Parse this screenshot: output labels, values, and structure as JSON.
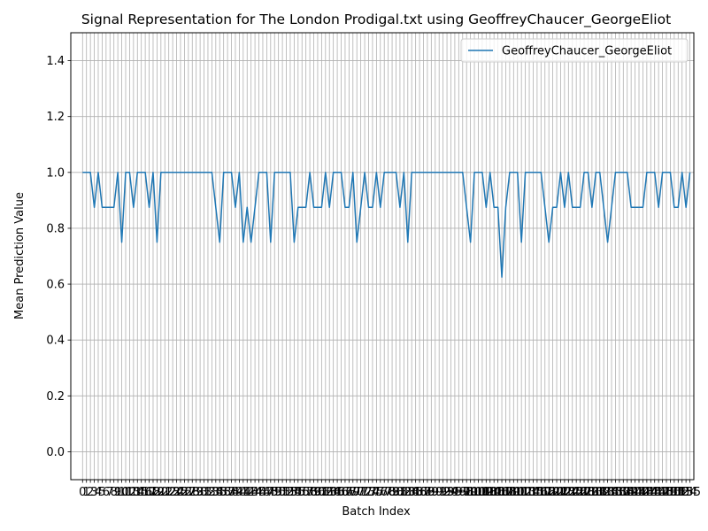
{
  "chart_data": {
    "type": "line",
    "title": "Signal Representation for The London Prodigal.txt using GeoffreyChaucer_GeorgeEliot",
    "xlabel": "Batch Index",
    "ylabel": "Mean Prediction Value",
    "ylim": [
      -0.1,
      1.5
    ],
    "yticks": [
      "0.0",
      "0.2",
      "0.4",
      "0.6",
      "0.8",
      "1.0",
      "1.2",
      "1.4"
    ],
    "xlim": [
      -3,
      156
    ],
    "grid": true,
    "legend_position": "top-right",
    "series": [
      {
        "name": "GeoffreyChaucer_GeorgeEliot",
        "color": "#1f77b4",
        "values": [
          1,
          1,
          1,
          0.875,
          1,
          0.875,
          0.875,
          0.875,
          0.875,
          1,
          0.75,
          1,
          1,
          0.875,
          1,
          1,
          1,
          0.875,
          1,
          0.75,
          1,
          1,
          1,
          1,
          1,
          1,
          1,
          1,
          1,
          1,
          1,
          1,
          1,
          1,
          0.875,
          0.75,
          1,
          1,
          1,
          0.875,
          1,
          0.75,
          0.875,
          0.75,
          0.875,
          1,
          1,
          1,
          0.75,
          1,
          1,
          1,
          1,
          1,
          0.75,
          0.875,
          0.875,
          0.875,
          1,
          0.875,
          0.875,
          0.875,
          1,
          0.875,
          1,
          1,
          1,
          0.875,
          0.875,
          1,
          0.75,
          0.875,
          1,
          0.875,
          0.875,
          1,
          0.875,
          1,
          1,
          1,
          1,
          0.875,
          1,
          0.75,
          1,
          1,
          1,
          1,
          1,
          1,
          1,
          1,
          1,
          1,
          1,
          1,
          1,
          1,
          0.875,
          0.75,
          1,
          1,
          1,
          0.875,
          1,
          0.875,
          0.875,
          0.625,
          0.875,
          1,
          1,
          1,
          0.75,
          1,
          1,
          1,
          1,
          1,
          0.875,
          0.75,
          0.875,
          0.875,
          1,
          0.875,
          1,
          0.875,
          0.875,
          0.875,
          1,
          1,
          0.875,
          1,
          1,
          0.875,
          0.75,
          0.875,
          1,
          1,
          1,
          1,
          0.875,
          0.875,
          0.875,
          0.875,
          1,
          1,
          1,
          0.875,
          1,
          1,
          1,
          0.875,
          0.875,
          1,
          0.875,
          1
        ]
      }
    ]
  }
}
